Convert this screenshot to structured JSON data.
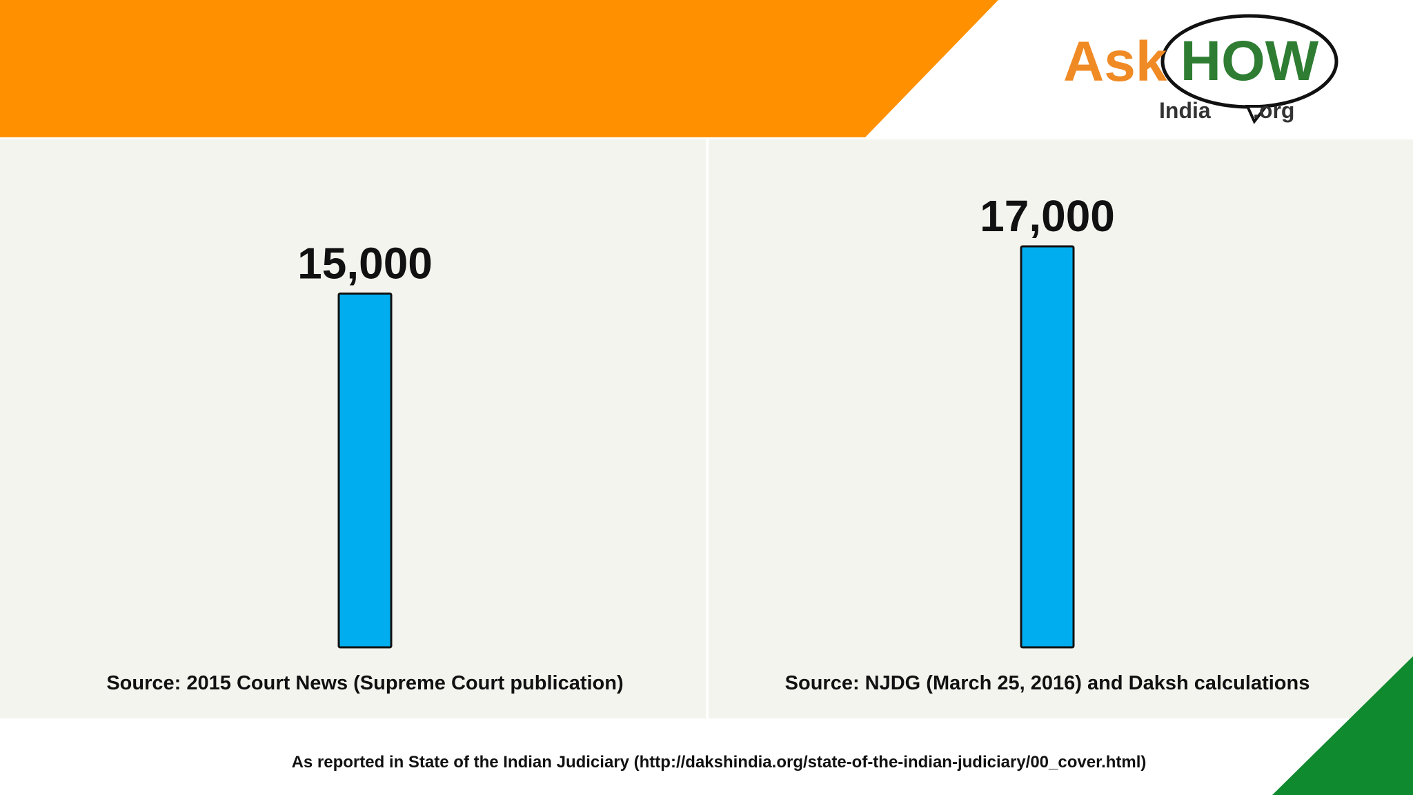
{
  "logo": {
    "ask": "Ask",
    "how": "HOW",
    "india": "India",
    "org": ".org"
  },
  "chart_data": [
    {
      "type": "bar",
      "values": [
        15000
      ],
      "value_labels": [
        "15,000"
      ],
      "color": "#00aeef",
      "source": "Source: 2015 Court News (Supreme Court publication)"
    },
    {
      "type": "bar",
      "values": [
        17000
      ],
      "value_labels": [
        "17,000"
      ],
      "color": "#00aeef",
      "source": "Source: NJDG (March 25, 2016) and Daksh calculations"
    }
  ],
  "footer": "As reported in State of the Indian Judiciary (http://dakshindia.org/state-of-the-indian-judiciary/00_cover.html)"
}
